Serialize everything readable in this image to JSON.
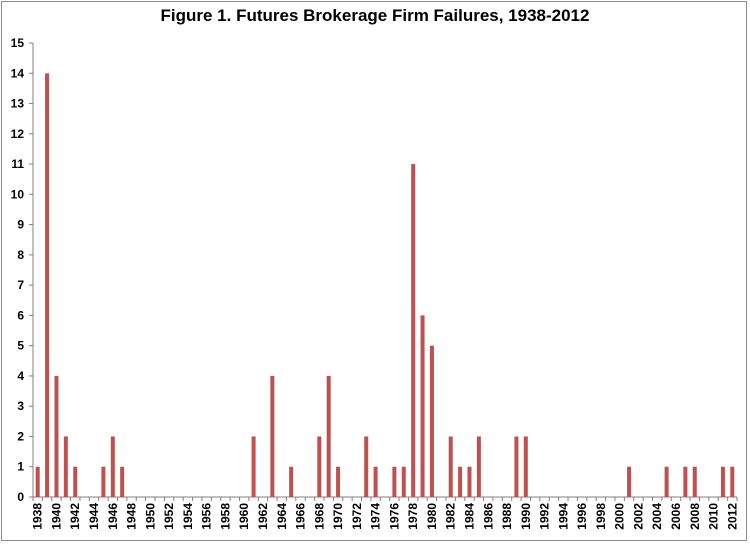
{
  "chart_data": {
    "type": "bar",
    "title": "Figure 1.  Futures Brokerage Firm Failures, 1938-2012",
    "xlabel": "",
    "ylabel": "",
    "ylim": [
      0,
      15
    ],
    "yticks": [
      "0",
      "1",
      "2",
      "3",
      "4",
      "5",
      "6",
      "7",
      "8",
      "9",
      "10",
      "11",
      "12",
      "13",
      "14",
      "15"
    ],
    "grid": false,
    "bar_color": "#C0504D",
    "categories": [
      "1938",
      "1939",
      "1940",
      "1941",
      "1942",
      "1943",
      "1944",
      "1945",
      "1946",
      "1947",
      "1948",
      "1949",
      "1950",
      "1951",
      "1952",
      "1953",
      "1954",
      "1955",
      "1956",
      "1957",
      "1958",
      "1959",
      "1960",
      "1961",
      "1962",
      "1963",
      "1964",
      "1965",
      "1966",
      "1967",
      "1968",
      "1969",
      "1970",
      "1971",
      "1972",
      "1973",
      "1974",
      "1975",
      "1976",
      "1977",
      "1978",
      "1979",
      "1980",
      "1981",
      "1982",
      "1983",
      "1984",
      "1985",
      "1986",
      "1987",
      "1988",
      "1989",
      "1990",
      "1991",
      "1992",
      "1993",
      "1994",
      "1995",
      "1996",
      "1997",
      "1998",
      "1999",
      "2000",
      "2001",
      "2002",
      "2003",
      "2004",
      "2005",
      "2006",
      "2007",
      "2008",
      "2009",
      "2010",
      "2011",
      "2012"
    ],
    "xtick_labels": [
      "1938",
      "1940",
      "1942",
      "1944",
      "1946",
      "1948",
      "1950",
      "1952",
      "1954",
      "1956",
      "1958",
      "1960",
      "1962",
      "1964",
      "1966",
      "1968",
      "1970",
      "1972",
      "1974",
      "1976",
      "1978",
      "1980",
      "1982",
      "1984",
      "1986",
      "1988",
      "1990",
      "1992",
      "1994",
      "1996",
      "1998",
      "2000",
      "2002",
      "2004",
      "2006",
      "2008",
      "2010",
      "2012"
    ],
    "values": [
      1,
      14,
      4,
      2,
      1,
      0,
      0,
      1,
      2,
      1,
      0,
      0,
      0,
      0,
      0,
      0,
      0,
      0,
      0,
      0,
      0,
      0,
      0,
      2,
      0,
      4,
      0,
      1,
      0,
      0,
      2,
      4,
      1,
      0,
      0,
      2,
      1,
      0,
      1,
      1,
      11,
      6,
      5,
      0,
      2,
      1,
      1,
      2,
      0,
      0,
      0,
      2,
      2,
      0,
      0,
      0,
      0,
      0,
      0,
      0,
      0,
      0,
      0,
      1,
      0,
      0,
      0,
      1,
      0,
      1,
      1,
      0,
      0,
      1,
      1
    ]
  }
}
